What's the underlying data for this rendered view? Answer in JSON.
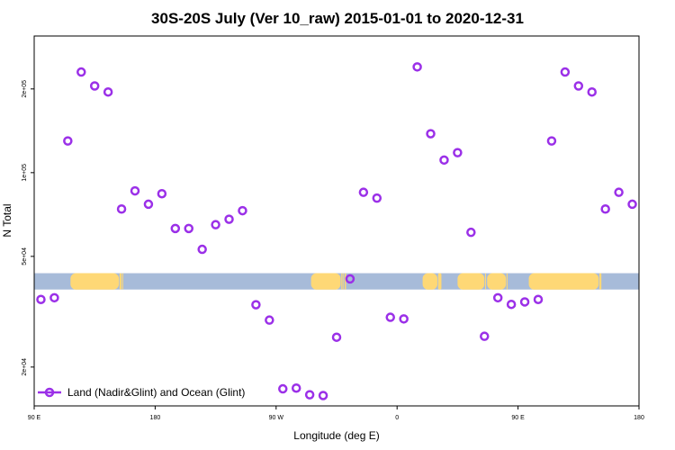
{
  "chart_data": {
    "type": "scatter",
    "title": "30S-20S July (Ver 10_raw)   2015-01-01 to 2020-12-31",
    "xlabel": "Longitude (deg E)",
    "ylabel": "N Total",
    "x_scale": "longitude, 90E to 180 (450 deg span, wrapping)",
    "y_scale": "log",
    "xlim": [
      90,
      540
    ],
    "ylim": [
      14500,
      310000
    ],
    "x_ticks": [
      {
        "value": 90,
        "label": "90 E"
      },
      {
        "value": 180,
        "label": "180"
      },
      {
        "value": 270,
        "label": "90 W"
      },
      {
        "value": 360,
        "label": "0"
      },
      {
        "value": 450,
        "label": "90 E"
      },
      {
        "value": 540,
        "label": "180"
      }
    ],
    "y_ticks": [
      {
        "value": 20000,
        "label": "2e+04"
      },
      {
        "value": 50000,
        "label": "5e+04"
      },
      {
        "value": 100000,
        "label": "1e+05"
      },
      {
        "value": 200000,
        "label": "2e+05"
      }
    ],
    "legend": {
      "entry": "Land (Nadir&Glint) and Ocean (Glint)",
      "position": "bottom-left"
    },
    "colors": {
      "marker": "#9b30e8",
      "land": "#fed876",
      "ocean": "#a7bbd9",
      "axis": "#000000"
    },
    "map_strip": {
      "y_top": 43500,
      "y_bottom": 38000,
      "land_segments": [
        [
          117,
          153
        ],
        [
          153.5,
          155
        ],
        [
          155.5,
          156
        ],
        [
          296,
          318
        ],
        [
          318.5,
          319
        ],
        [
          319.5,
          320
        ],
        [
          321,
          322
        ],
        [
          379,
          390
        ],
        [
          390.5,
          393
        ],
        [
          405,
          425
        ],
        [
          425.5,
          426
        ],
        [
          427,
          441
        ],
        [
          441.5,
          442
        ],
        [
          458,
          510
        ],
        [
          510.5,
          512
        ]
      ]
    },
    "series": [
      {
        "name": "Land (Nadir&Glint) and Ocean (Glint)",
        "x": [
          95,
          105,
          115,
          125,
          135,
          145,
          155,
          165,
          175,
          185,
          195,
          205,
          215,
          225,
          235,
          245,
          255,
          265,
          275,
          285,
          295,
          305,
          315,
          325,
          335,
          345,
          355,
          365,
          375,
          385,
          395,
          405,
          415,
          425,
          435,
          445,
          455,
          465,
          475,
          485,
          495,
          505,
          515,
          525,
          535
        ],
        "y": [
          35000,
          35500,
          130000,
          230000,
          205000,
          195000,
          74000,
          86000,
          77000,
          84000,
          63000,
          63000,
          53000,
          65000,
          68000,
          73000,
          33500,
          29500,
          16700,
          16800,
          15900,
          15800,
          25600,
          41500,
          85000,
          81000,
          30200,
          29800,
          240000,
          138000,
          111000,
          118000,
          61000,
          25800,
          35500,
          33600,
          34300,
          35000,
          130000,
          230000,
          205000,
          195000,
          74000,
          85000,
          77000
        ]
      }
    ]
  }
}
